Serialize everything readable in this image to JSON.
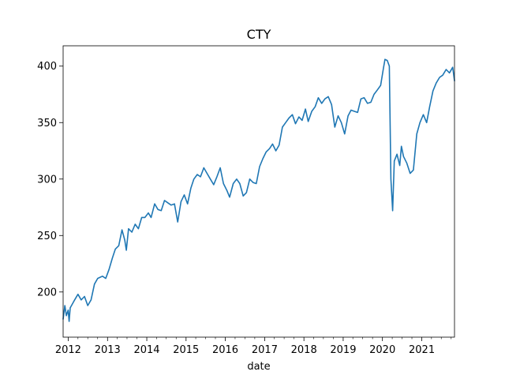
{
  "chart_data": {
    "type": "line",
    "title": "CTY",
    "xlabel": "date",
    "ylabel": "",
    "xlim": [
      "2011-11-15",
      "2021-11-01"
    ],
    "ylim": [
      160,
      418
    ],
    "grid": false,
    "legend": "none",
    "line_color": "#1f77b4",
    "x_ticks": [
      {
        "date": "2012-01-01",
        "label": "2012"
      },
      {
        "date": "2013-01-01",
        "label": "2013"
      },
      {
        "date": "2014-01-01",
        "label": "2014"
      },
      {
        "date": "2015-01-01",
        "label": "2015"
      },
      {
        "date": "2016-01-01",
        "label": "2016"
      },
      {
        "date": "2017-01-01",
        "label": "2017"
      },
      {
        "date": "2018-01-01",
        "label": "2018"
      },
      {
        "date": "2019-01-01",
        "label": "2019"
      },
      {
        "date": "2020-01-01",
        "label": "2020"
      },
      {
        "date": "2021-01-01",
        "label": "2021"
      }
    ],
    "y_ticks": [
      {
        "value": 200,
        "label": "200"
      },
      {
        "value": 250,
        "label": "250"
      },
      {
        "value": 300,
        "label": "300"
      },
      {
        "value": 350,
        "label": "350"
      },
      {
        "value": 400,
        "label": "400"
      }
    ],
    "series": [
      {
        "x": [
          "2011-11-15",
          "2011-12-01",
          "2011-12-15",
          "2012-01-01",
          "2012-01-10",
          "2012-01-20",
          "2012-02-01",
          "2012-03-01",
          "2012-04-01",
          "2012-05-01",
          "2012-06-01",
          "2012-07-01",
          "2012-08-01",
          "2012-09-01",
          "2012-10-01",
          "2012-11-15",
          "2012-12-15",
          "2013-01-15",
          "2013-02-15",
          "2013-03-15",
          "2013-04-15",
          "2013-05-15",
          "2013-06-10",
          "2013-06-25",
          "2013-07-15",
          "2013-08-15",
          "2013-09-15",
          "2013-10-15",
          "2013-11-15",
          "2013-12-15",
          "2014-01-15",
          "2014-02-10",
          "2014-03-15",
          "2014-04-15",
          "2014-05-15",
          "2014-06-15",
          "2014-07-15",
          "2014-08-15",
          "2014-09-15",
          "2014-10-15",
          "2014-11-15",
          "2014-12-15",
          "2015-01-15",
          "2015-02-15",
          "2015-03-15",
          "2015-04-15",
          "2015-05-15",
          "2015-06-15",
          "2015-07-15",
          "2015-08-15",
          "2015-09-15",
          "2015-10-15",
          "2015-11-15",
          "2015-12-15",
          "2016-01-15",
          "2016-02-10",
          "2016-03-15",
          "2016-04-15",
          "2016-05-15",
          "2016-06-15",
          "2016-07-15",
          "2016-08-15",
          "2016-09-15",
          "2016-10-15",
          "2016-11-15",
          "2016-12-15",
          "2017-01-15",
          "2017-02-15",
          "2017-03-15",
          "2017-04-15",
          "2017-05-15",
          "2017-06-15",
          "2017-07-15",
          "2017-08-15",
          "2017-09-15",
          "2017-10-15",
          "2017-11-15",
          "2017-12-15",
          "2018-01-15",
          "2018-02-10",
          "2018-03-15",
          "2018-04-15",
          "2018-05-15",
          "2018-06-15",
          "2018-07-15",
          "2018-08-15",
          "2018-09-15",
          "2018-10-15",
          "2018-11-15",
          "2018-12-15",
          "2019-01-15",
          "2019-02-15",
          "2019-03-15",
          "2019-04-15",
          "2019-05-15",
          "2019-06-15",
          "2019-07-15",
          "2019-08-15",
          "2019-09-15",
          "2019-10-15",
          "2019-11-15",
          "2019-12-15",
          "2020-01-10",
          "2020-01-25",
          "2020-02-15",
          "2020-03-05",
          "2020-03-20",
          "2020-04-05",
          "2020-04-20",
          "2020-05-15",
          "2020-06-10",
          "2020-06-25",
          "2020-07-15",
          "2020-08-15",
          "2020-09-15",
          "2020-10-15",
          "2020-11-15",
          "2020-12-15",
          "2021-01-15",
          "2021-02-15",
          "2021-03-15",
          "2021-04-15",
          "2021-05-15",
          "2021-06-15",
          "2021-07-15",
          "2021-08-15",
          "2021-09-15",
          "2021-10-15",
          "2021-11-01"
        ],
        "y": [
          176,
          188,
          179,
          184,
          174,
          186,
          188,
          193,
          198,
          193,
          196,
          188,
          193,
          207,
          212,
          214,
          212,
          220,
          230,
          238,
          241,
          255,
          246,
          237,
          256,
          253,
          260,
          256,
          266,
          266,
          270,
          266,
          278,
          273,
          272,
          281,
          279,
          277,
          278,
          262,
          280,
          286,
          278,
          292,
          300,
          304,
          302,
          310,
          305,
          300,
          295,
          302,
          310,
          296,
          290,
          284,
          296,
          300,
          296,
          285,
          288,
          300,
          297,
          296,
          311,
          318,
          324,
          327,
          331,
          325,
          330,
          346,
          350,
          354,
          357,
          349,
          355,
          352,
          362,
          351,
          360,
          364,
          372,
          367,
          371,
          373,
          366,
          346,
          356,
          350,
          340,
          356,
          361,
          360,
          359,
          371,
          372,
          367,
          368,
          375,
          379,
          383,
          398,
          406,
          405,
          400,
          300,
          272,
          316,
          322,
          312,
          329,
          320,
          314,
          305,
          308,
          340,
          350,
          357,
          350,
          364,
          378,
          385,
          390,
          392,
          397,
          394,
          399,
          387
        ]
      }
    ]
  }
}
